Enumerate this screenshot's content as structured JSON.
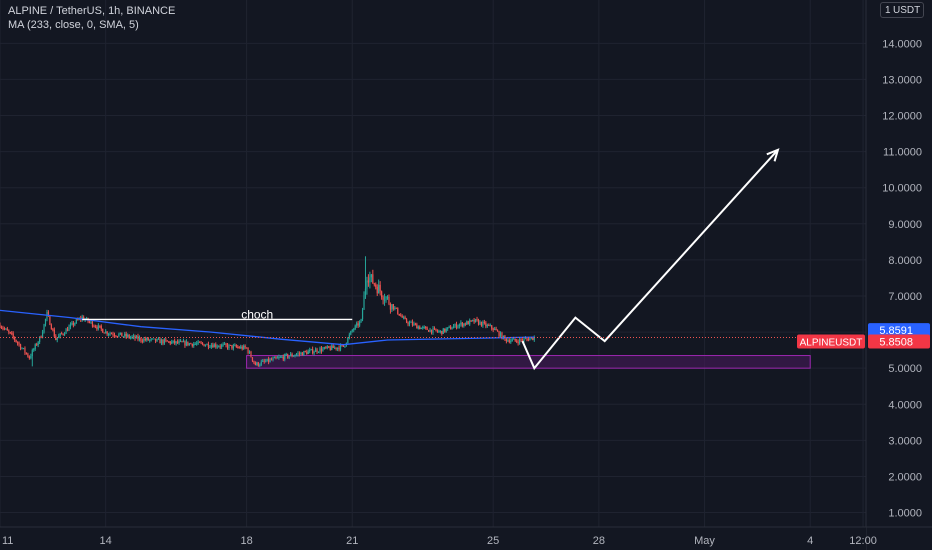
{
  "header": {
    "title": "ALPINE / TetherUS, 1h, BINANCE",
    "indicator": "MA (233, close, 0, SMA, 5)"
  },
  "unit_badge": {
    "number": "1",
    "label": "USDT"
  },
  "colors": {
    "background": "#131722",
    "axis_text": "#b2b5be",
    "up": "#26a69a",
    "down": "#ef5350",
    "ma": "#2962ff",
    "zone_stroke": "#9c27b0",
    "zone_fill": "#4a1a5e",
    "annotation": "#ffffff",
    "ma_label_bg": "#2962ff",
    "price_label_bg": "#f23645"
  },
  "chart_data": {
    "type": "candlestick",
    "symbol": "ALPINE / TetherUS",
    "interval": "1h",
    "exchange": "BINANCE",
    "ylim": [
      0.6,
      15.2
    ],
    "y_ticks": [
      1,
      2,
      3,
      4,
      5,
      6,
      7,
      8,
      9,
      10,
      11,
      12,
      13,
      14
    ],
    "y_tick_labels": [
      "1.0000",
      "2.0000",
      "3.0000",
      "4.0000",
      "5.0000",
      "6.0000",
      "7.0000",
      "8.0000",
      "9.0000",
      "10.0000",
      "11.0000",
      "12.0000",
      "13.0000",
      "14.0000"
    ],
    "x_range": [
      "Apr 11 00:00",
      "May 5 14:00"
    ],
    "x_ticks": [
      {
        "label": "11",
        "t": "Apr 11"
      },
      {
        "label": "14",
        "t": "Apr 14"
      },
      {
        "label": "18",
        "t": "Apr 18"
      },
      {
        "label": "21",
        "t": "Apr 21"
      },
      {
        "label": "25",
        "t": "Apr 25"
      },
      {
        "label": "28",
        "t": "Apr 28"
      },
      {
        "label": "May",
        "t": "May 1"
      },
      {
        "label": "4",
        "t": "May 4"
      },
      {
        "label": "12:00",
        "t": "May 5 12:00"
      }
    ],
    "price_path": [
      [
        "Apr 11 00:00",
        6.2
      ],
      [
        "Apr 11 08:00",
        5.9
      ],
      [
        "Apr 11 20:00",
        5.3
      ],
      [
        "Apr 12 04:00",
        5.9
      ],
      [
        "Apr 12 08:00",
        6.5
      ],
      [
        "Apr 12 14:00",
        5.8
      ],
      [
        "Apr 13 04:00",
        6.3
      ],
      [
        "Apr 13 08:00",
        6.4
      ],
      [
        "Apr 14 00:00",
        6.0
      ],
      [
        "Apr 15 00:00",
        5.8
      ],
      [
        "Apr 16 00:00",
        5.7
      ],
      [
        "Apr 17 00:00",
        5.65
      ],
      [
        "Apr 18 00:00",
        5.55
      ],
      [
        "Apr 18 06:00",
        5.1
      ],
      [
        "Apr 19 00:00",
        5.3
      ],
      [
        "Apr 20 00:00",
        5.5
      ],
      [
        "Apr 20 18:00",
        5.6
      ],
      [
        "Apr 21 00:00",
        6.05
      ],
      [
        "Apr 21 06:00",
        6.3
      ],
      [
        "Apr 21 10:00",
        7.6
      ],
      [
        "Apr 21 18:00",
        7.2
      ],
      [
        "Apr 22 00:00",
        6.9
      ],
      [
        "Apr 22 12:00",
        6.3
      ],
      [
        "Apr 23 00:00",
        6.1
      ],
      [
        "Apr 23 12:00",
        6.0
      ],
      [
        "Apr 24 00:00",
        6.2
      ],
      [
        "Apr 24 12:00",
        6.3
      ],
      [
        "Apr 25 00:00",
        6.1
      ],
      [
        "Apr 25 08:00",
        5.8
      ],
      [
        "Apr 25 16:00",
        5.75
      ],
      [
        "Apr 26 04:00",
        5.85
      ]
    ],
    "price_high": 8.1,
    "price_high_time": "Apr 21 09:00",
    "price_low": 5.05,
    "price_low_time": "Apr 11 22:00",
    "ma_series": {
      "name": "MA (233, close, 0, SMA, 5)",
      "points": [
        [
          "Apr 11 00:00",
          6.6
        ],
        [
          "Apr 13 00:00",
          6.4
        ],
        [
          "Apr 15 00:00",
          6.15
        ],
        [
          "Apr 17 00:00",
          6.0
        ],
        [
          "Apr 19 00:00",
          5.8
        ],
        [
          "Apr 20 18:00",
          5.65
        ],
        [
          "Apr 22 00:00",
          5.78
        ],
        [
          "Apr 24 00:00",
          5.82
        ],
        [
          "Apr 26 04:00",
          5.86
        ]
      ]
    },
    "last_price": 5.8508,
    "ma_value": 5.8591,
    "last_price_label": "5.8508",
    "ma_value_label": "5.8591",
    "symbol_label": "ALPINEUSDT",
    "annotations": {
      "choch_label": "choch",
      "choch_level": 6.35,
      "choch_from": "Apr 13 08:00",
      "choch_to": "Apr 21 00:00",
      "demand_zone": {
        "from": "Apr 18 00:00",
        "to": "May 4 00:00",
        "low": 5.0,
        "high": 5.35
      },
      "projection_path": [
        [
          "Apr 25 20:00",
          5.75
        ],
        [
          "Apr 26 04:00",
          5.0
        ],
        [
          "Apr 27 08:00",
          6.4
        ],
        [
          "Apr 28 04:00",
          5.75
        ],
        [
          "May 3 02:00",
          11.05
        ]
      ]
    }
  }
}
